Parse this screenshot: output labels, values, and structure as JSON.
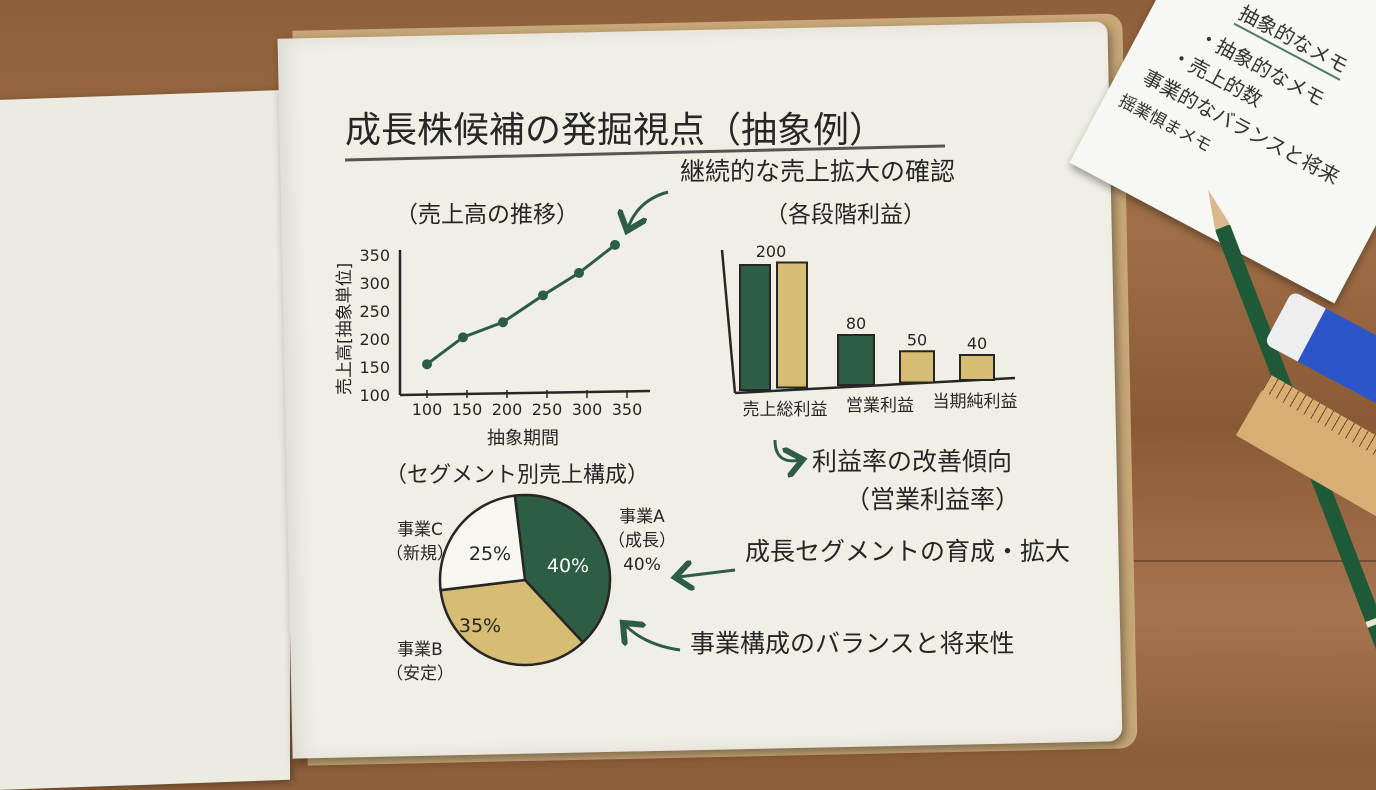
{
  "page": {
    "title": "成長株候補の発掘視点（抽象例）",
    "annotations": {
      "sales_growth": "継続的な売上拡大の確認",
      "margin_trend": "利益率の改善傾向",
      "margin_trend_sub": "（営業利益率）",
      "segment_growth": "成長セグメントの育成・拡大",
      "segment_balance": "事業構成のバランスと将来性"
    }
  },
  "sticky_note": {
    "title": "抽象的なメモ",
    "lines": [
      "・抽象的なメモ",
      "・売上的数",
      "事業的なバランスと将来",
      "揺業惧まメモ"
    ]
  },
  "colors": {
    "green": "#2d5e43",
    "tan": "#d6bd73",
    "ink": "#262626",
    "paper": "#f1efe5"
  },
  "chart_data": [
    {
      "type": "line",
      "title": "（売上高の推移）",
      "xlabel": "抽象期間",
      "ylabel": "売上高[抽象単位]",
      "x_ticks": [
        "100",
        "150",
        "200",
        "250",
        "300",
        "350"
      ],
      "y_ticks": [
        "100",
        "150",
        "200",
        "250",
        "300",
        "350"
      ],
      "xlim": [
        100,
        350
      ],
      "ylim": [
        100,
        350
      ],
      "grid": false,
      "x": [
        100,
        145,
        195,
        245,
        290,
        335
      ],
      "y": [
        155,
        203,
        230,
        278,
        318,
        368
      ]
    },
    {
      "type": "bar",
      "title": "（各段階利益）",
      "categories": [
        "売上総利益",
        "営業利益",
        "当期純利益"
      ],
      "bars": [
        {
          "value": 200,
          "label": "200",
          "color": "#2d5e43"
        },
        {
          "value": 200,
          "label": "",
          "color": "#d6bd73"
        },
        {
          "value": 80,
          "label": "80",
          "color": "#2d5e43"
        },
        {
          "value": 50,
          "label": "50",
          "color": "#d6bd73"
        },
        {
          "value": 40,
          "label": "40",
          "color": "#d6bd73"
        }
      ],
      "ylim": [
        0,
        200
      ],
      "grid": false
    },
    {
      "type": "pie",
      "title": "（セグメント別売上構成）",
      "slices": [
        {
          "name": "事業A",
          "sub": "（成長）",
          "value": 40,
          "label": "40%",
          "outer_label": "40%",
          "color": "#2d5e43"
        },
        {
          "name": "事業B",
          "sub": "（安定）",
          "value": 35,
          "label": "35%",
          "color": "#d6bd73"
        },
        {
          "name": "事業C",
          "sub": "（新規）",
          "value": 25,
          "label": "25%",
          "color": "#f7f6ef"
        }
      ]
    }
  ]
}
